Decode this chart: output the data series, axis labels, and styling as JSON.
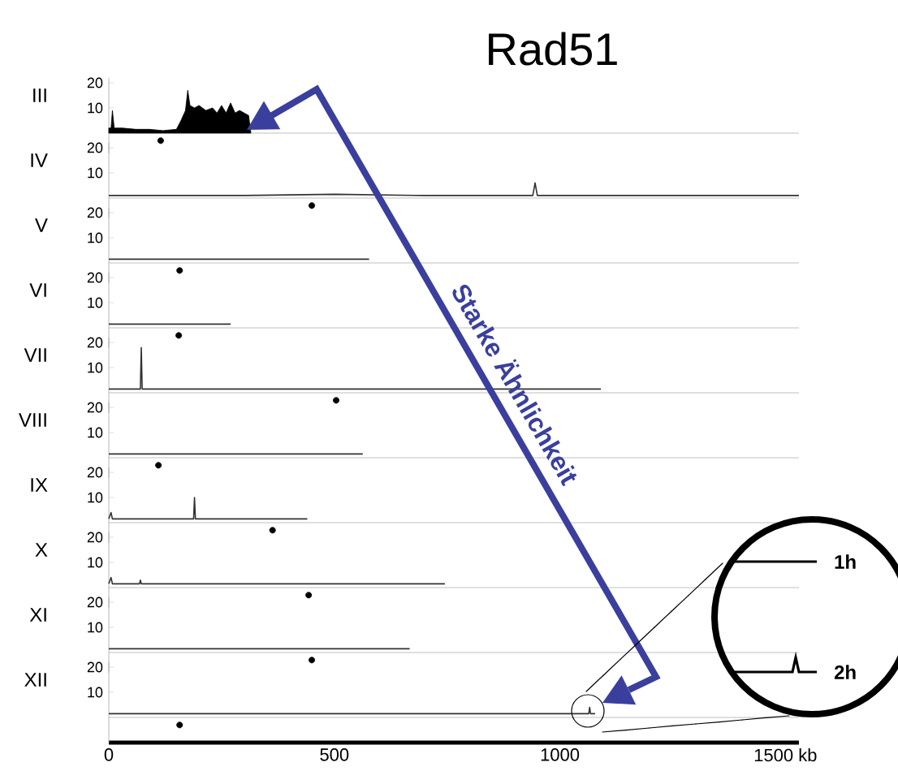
{
  "chart_data": [
    {
      "type": "line",
      "title": "Rad51",
      "ylabel": "III",
      "annotations": [
        "Starke Ähnlichkeit"
      ],
      "xlim": [
        0,
        1530
      ],
      "ylim": [
        -8,
        22
      ],
      "yticks": [
        10,
        20
      ],
      "tick_labels": "y",
      "ref_lines": [
        {
          "axis": "y",
          "value": 0,
          "color": "#b0b0b0"
        }
      ],
      "series": [
        {
          "type": "area",
          "color": "#000000",
          "x": [
            0,
            5,
            8,
            12,
            30,
            60,
            90,
            120,
            150,
            160,
            170,
            175,
            180,
            190,
            200,
            215,
            230,
            240,
            250,
            260,
            270,
            280,
            290,
            300,
            310,
            315
          ],
          "values": [
            2,
            2,
            9,
            2,
            2,
            1.5,
            1.5,
            1,
            1.5,
            5,
            9,
            17,
            11,
            10,
            11,
            9,
            10,
            8,
            11,
            8,
            12,
            8,
            9,
            8,
            7,
            0
          ]
        },
        {
          "type": "scatter",
          "marker": "circle",
          "color": "#000000",
          "x": [
            115
          ],
          "values": [
            -3
          ]
        }
      ]
    },
    {
      "type": "line",
      "ylabel": "IV",
      "xlim": [
        0,
        1530
      ],
      "ylim": [
        -8,
        22
      ],
      "yticks": [
        10,
        20
      ],
      "tick_labels": "y",
      "ref_lines": [
        {
          "axis": "y",
          "value": 0,
          "color": "#b0b0b0"
        }
      ],
      "series": [
        {
          "type": "line",
          "color": "#333333",
          "x": [
            0,
            100,
            300,
            500,
            700,
            900,
            940,
            945,
            950,
            1100,
            1300,
            1530
          ],
          "values": [
            1,
            1,
            1,
            1.5,
            1,
            1,
            1,
            6,
            1,
            1,
            1,
            1
          ]
        },
        {
          "type": "scatter",
          "marker": "circle",
          "color": "#000000",
          "x": [
            450
          ],
          "values": [
            -3
          ]
        }
      ]
    },
    {
      "type": "line",
      "ylabel": "V",
      "xlim": [
        0,
        1530
      ],
      "ylim": [
        -8,
        22
      ],
      "yticks": [
        10,
        20
      ],
      "tick_labels": "y",
      "ref_lines": [
        {
          "axis": "y",
          "value": 0,
          "color": "#b0b0b0"
        }
      ],
      "series": [
        {
          "type": "line",
          "color": "#333333",
          "x": [
            0,
            100,
            200,
            300,
            400,
            500,
            577
          ],
          "values": [
            1.5,
            1.5,
            1.5,
            1.5,
            1.5,
            1.5,
            1.5
          ]
        },
        {
          "type": "scatter",
          "marker": "circle",
          "color": "#000000",
          "x": [
            157
          ],
          "values": [
            -3
          ]
        }
      ]
    },
    {
      "type": "line",
      "ylabel": "VI",
      "xlim": [
        0,
        1530
      ],
      "ylim": [
        -8,
        22
      ],
      "yticks": [
        10,
        20
      ],
      "tick_labels": "y",
      "ref_lines": [
        {
          "axis": "y",
          "value": 0,
          "color": "#b0b0b0"
        }
      ],
      "series": [
        {
          "type": "line",
          "color": "#333333",
          "x": [
            0,
            100,
            200,
            270
          ],
          "values": [
            1.5,
            1.5,
            1.5,
            1.5
          ]
        },
        {
          "type": "scatter",
          "marker": "circle",
          "color": "#000000",
          "x": [
            155
          ],
          "values": [
            -3
          ]
        }
      ]
    },
    {
      "type": "line",
      "ylabel": "VII",
      "xlim": [
        0,
        1530
      ],
      "ylim": [
        -8,
        22
      ],
      "yticks": [
        10,
        20
      ],
      "tick_labels": "y",
      "ref_lines": [
        {
          "axis": "y",
          "value": 0,
          "color": "#b0b0b0"
        }
      ],
      "series": [
        {
          "type": "line",
          "color": "#333333",
          "x": [
            0,
            70,
            72,
            74,
            300,
            600,
            900,
            1091
          ],
          "values": [
            1.5,
            1.5,
            18,
            1.5,
            1.5,
            1.5,
            1.5,
            1.5
          ]
        },
        {
          "type": "scatter",
          "marker": "circle",
          "color": "#000000",
          "x": [
            504
          ],
          "values": [
            -3
          ]
        }
      ]
    },
    {
      "type": "line",
      "ylabel": "VIII",
      "xlim": [
        0,
        1530
      ],
      "ylim": [
        -8,
        22
      ],
      "yticks": [
        10,
        20
      ],
      "tick_labels": "y",
      "ref_lines": [
        {
          "axis": "y",
          "value": 0,
          "color": "#b0b0b0"
        }
      ],
      "series": [
        {
          "type": "line",
          "color": "#333333",
          "x": [
            0,
            200,
            400,
            563
          ],
          "values": [
            1.5,
            1.5,
            1.5,
            1.5
          ]
        },
        {
          "type": "scatter",
          "marker": "circle",
          "color": "#000000",
          "x": [
            110
          ],
          "values": [
            -3
          ]
        }
      ]
    },
    {
      "type": "line",
      "ylabel": "IX",
      "xlim": [
        0,
        1530
      ],
      "ylim": [
        -8,
        22
      ],
      "yticks": [
        10,
        20
      ],
      "tick_labels": "y",
      "ref_lines": [
        {
          "axis": "y",
          "value": 0,
          "color": "#b0b0b0"
        }
      ],
      "series": [
        {
          "type": "line",
          "color": "#333333",
          "x": [
            0,
            5,
            8,
            100,
            188,
            190,
            192,
            300,
            440
          ],
          "values": [
            1.5,
            4,
            1.5,
            1.5,
            1.5,
            10,
            1.5,
            1.5,
            1.5
          ]
        },
        {
          "type": "scatter",
          "marker": "circle",
          "color": "#000000",
          "x": [
            363
          ],
          "values": [
            -3
          ]
        }
      ]
    },
    {
      "type": "line",
      "ylabel": "X",
      "xlim": [
        0,
        1530
      ],
      "ylim": [
        -8,
        22
      ],
      "yticks": [
        10,
        20
      ],
      "tick_labels": "y",
      "ref_lines": [
        {
          "axis": "y",
          "value": 0,
          "color": "#b0b0b0"
        }
      ],
      "series": [
        {
          "type": "line",
          "color": "#333333",
          "x": [
            0,
            5,
            8,
            68,
            70,
            72,
            300,
            500,
            745
          ],
          "values": [
            1.5,
            4,
            1.5,
            1.5,
            3,
            1.5,
            1.5,
            1.5,
            1.5
          ]
        },
        {
          "type": "scatter",
          "marker": "circle",
          "color": "#000000",
          "x": [
            443
          ],
          "values": [
            -3
          ]
        }
      ]
    },
    {
      "type": "line",
      "ylabel": "XI",
      "xlim": [
        0,
        1530
      ],
      "ylim": [
        -8,
        22
      ],
      "yticks": [
        10,
        20
      ],
      "tick_labels": "y",
      "ref_lines": [
        {
          "axis": "y",
          "value": 0,
          "color": "#b0b0b0"
        }
      ],
      "series": [
        {
          "type": "line",
          "color": "#333333",
          "x": [
            0,
            200,
            400,
            667
          ],
          "values": [
            1.5,
            1.5,
            1.5,
            1.5
          ]
        },
        {
          "type": "scatter",
          "marker": "circle",
          "color": "#000000",
          "x": [
            450
          ],
          "values": [
            -3
          ]
        }
      ]
    },
    {
      "type": "line",
      "ylabel": "XII",
      "annotations": [
        "1h",
        "2h"
      ],
      "xlim": [
        0,
        1530
      ],
      "ylim": [
        -10,
        22
      ],
      "yticks": [
        10,
        20
      ],
      "xticks": [
        0,
        500,
        1000,
        {
          "value": 1500,
          "label": "1500 kb"
        }
      ],
      "ref_lines": [
        {
          "axis": "y",
          "value": 0,
          "color": "#b0b0b0"
        }
      ],
      "series": [
        {
          "type": "line",
          "color": "#333333",
          "x": [
            0,
            300,
            600,
            900,
            1064,
            1066,
            1068,
            1078
          ],
          "values": [
            1.5,
            1.5,
            1.5,
            1.5,
            1.5,
            4,
            1.5,
            1.5
          ]
        },
        {
          "type": "scatter",
          "marker": "circle",
          "color": "#000000",
          "x": [
            157
          ],
          "values": [
            -3
          ]
        }
      ]
    }
  ]
}
